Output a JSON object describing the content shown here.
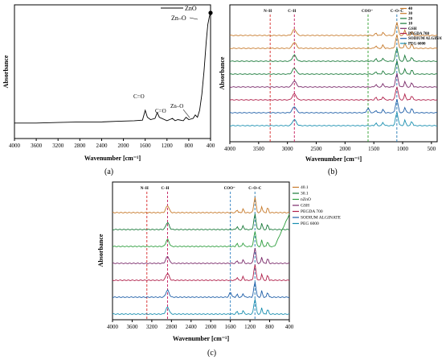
{
  "figure": {
    "panel_labels": [
      "(a)",
      "(b)",
      "(c)"
    ]
  },
  "chart_data": [
    {
      "panel": "(a)",
      "type": "line",
      "xlabel": "Wavenumber [cm⁻¹]",
      "ylabel": "Absorbance",
      "xlim": [
        4000,
        400
      ],
      "x_ticks": [
        4000,
        3600,
        3200,
        2800,
        2400,
        2000,
        1600,
        1200,
        800,
        400
      ],
      "legend": [
        "ZnO"
      ],
      "legend_position": "top-right",
      "grid": false,
      "series": [
        {
          "name": "ZnO",
          "color": "#000000",
          "x": [
            4000,
            3600,
            3200,
            2800,
            2400,
            2100,
            1800,
            1650,
            1600,
            1560,
            1500,
            1420,
            1380,
            1340,
            1200,
            1100,
            1050,
            1000,
            900,
            850,
            800,
            720,
            680,
            640,
            600,
            560,
            520,
            480,
            450,
            420,
            400
          ],
          "y": [
            0.05,
            0.05,
            0.055,
            0.06,
            0.06,
            0.065,
            0.07,
            0.075,
            0.16,
            0.1,
            0.08,
            0.09,
            0.14,
            0.1,
            0.07,
            0.09,
            0.07,
            0.08,
            0.07,
            0.1,
            0.08,
            0.09,
            0.12,
            0.1,
            0.16,
            0.3,
            0.5,
            0.75,
            0.9,
            0.97,
            1.0
          ]
        }
      ],
      "annotations": [
        {
          "text": "C=O",
          "x": 1600,
          "y": 0.2
        },
        {
          "text": "C=O",
          "x": 1380,
          "y": 0.17
        },
        {
          "text": "Zn–O",
          "x": 780,
          "y": 0.17
        },
        {
          "text": "Zn–O",
          "x": 420,
          "y": 1.04
        }
      ]
    },
    {
      "panel": "(b)",
      "type": "line",
      "xlabel": "Wavenumber [cm⁻¹]",
      "ylabel": "Absorbance",
      "xlim": [
        4000,
        400
      ],
      "x_ticks": [
        4000,
        3500,
        3000,
        2500,
        2000,
        1500,
        1000,
        500
      ],
      "legend_position": "top-right",
      "grid": false,
      "reference_lines": [
        {
          "label": "N–H",
          "x": 3300,
          "color": "#d62728"
        },
        {
          "label": "C–H",
          "x": 2880,
          "color": "#c2185b"
        },
        {
          "label": "COO⁻",
          "x": 1600,
          "color": "#2e9e2e"
        },
        {
          "label": "C–O–C",
          "x": 1100,
          "color": "#1f77b4"
        }
      ],
      "series": [
        {
          "name": "40",
          "color": "#c77a2b"
        },
        {
          "name": "30",
          "color": "#c77a2b"
        },
        {
          "name": "20",
          "color": "#1a7a3a"
        },
        {
          "name": "10",
          "color": "#1a7a3a"
        },
        {
          "name": "GSH",
          "color": "#7a2a6a"
        },
        {
          "name": "PEGDA 700",
          "color": "#b0204a"
        },
        {
          "name": "SODIUM ALGINATE",
          "color": "#1f5fa8"
        },
        {
          "name": "PEG 6000",
          "color": "#1a8fb0"
        }
      ]
    },
    {
      "panel": "(c)",
      "type": "line",
      "xlabel": "Wavenumber [cm⁻¹]",
      "ylabel": "Absorbance",
      "xlim": [
        4000,
        400
      ],
      "x_ticks": [
        4000,
        3600,
        3200,
        2800,
        2400,
        2000,
        1600,
        1200,
        800,
        400
      ],
      "legend_position": "top-right",
      "grid": false,
      "reference_lines": [
        {
          "label": "N–H",
          "x": 3300,
          "color": "#d62728"
        },
        {
          "label": "C–H",
          "x": 2880,
          "color": "#c2185b"
        },
        {
          "label": "COO⁻",
          "x": 1600,
          "color": "#2e7ec0"
        },
        {
          "label": "C–O–C",
          "x": 1100,
          "color": "#1f77b4"
        }
      ],
      "series": [
        {
          "name": "40.1",
          "color": "#c77a2b"
        },
        {
          "name": "30.1",
          "color": "#1a7a3a"
        },
        {
          "name": "nZnO",
          "color": "#2e9e3e"
        },
        {
          "name": "GSH",
          "color": "#7a2a6a"
        },
        {
          "name": "PEGDA 700",
          "color": "#b0204a"
        },
        {
          "name": "SODIUM ALGINATE",
          "color": "#1f5fa8"
        },
        {
          "name": "PEG 6000",
          "color": "#1a8fb0"
        }
      ]
    }
  ]
}
